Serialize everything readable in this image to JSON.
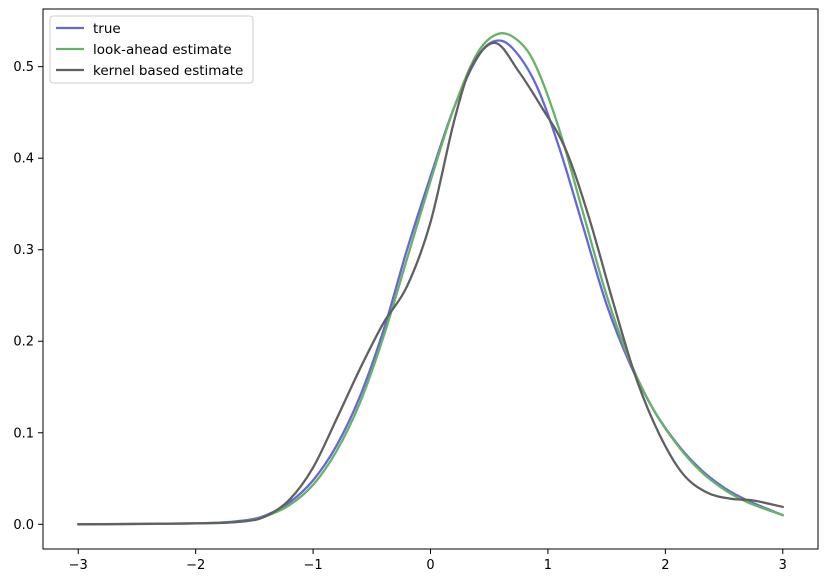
{
  "chart_data": {
    "type": "line",
    "title": "",
    "xlabel": "",
    "ylabel": "",
    "xlim": [
      -3.3,
      3.3
    ],
    "ylim": [
      -0.027,
      0.563
    ],
    "xticks": [
      -3,
      -2,
      -1,
      0,
      1,
      2,
      3
    ],
    "yticks": [
      0.0,
      0.1,
      0.2,
      0.3,
      0.4,
      0.5
    ],
    "xtick_labels": [
      "−3",
      "−2",
      "−1",
      "0",
      "1",
      "2",
      "3"
    ],
    "ytick_labels": [
      "0.0",
      "0.1",
      "0.2",
      "0.3",
      "0.4",
      "0.5"
    ],
    "grid": false,
    "legend_position": "top-left",
    "series": [
      {
        "name": "true",
        "color": "#6666dd",
        "x": [
          -3.0,
          -2.0,
          -1.6,
          -1.4,
          -1.2,
          -1.0,
          -0.8,
          -0.6,
          -0.4,
          -0.2,
          0.0,
          0.2,
          0.4,
          0.55,
          0.7,
          0.9,
          1.1,
          1.3,
          1.5,
          1.7,
          1.9,
          2.1,
          2.3,
          2.5,
          2.7,
          3.0
        ],
        "values": [
          0.0,
          0.001,
          0.004,
          0.01,
          0.024,
          0.048,
          0.086,
          0.14,
          0.212,
          0.3,
          0.38,
          0.455,
          0.51,
          0.528,
          0.52,
          0.48,
          0.41,
          0.325,
          0.24,
          0.175,
          0.125,
          0.088,
          0.06,
          0.04,
          0.026,
          0.01
        ]
      },
      {
        "name": "look-ahead estimate",
        "color": "#66b366",
        "x": [
          -3.0,
          -2.0,
          -1.6,
          -1.4,
          -1.2,
          -1.0,
          -0.8,
          -0.6,
          -0.4,
          -0.2,
          0.0,
          0.2,
          0.4,
          0.58,
          0.75,
          0.9,
          1.1,
          1.3,
          1.5,
          1.7,
          1.9,
          2.1,
          2.3,
          2.5,
          2.7,
          3.0
        ],
        "values": [
          0.0,
          0.001,
          0.003,
          0.009,
          0.021,
          0.043,
          0.08,
          0.133,
          0.205,
          0.29,
          0.375,
          0.455,
          0.515,
          0.536,
          0.528,
          0.5,
          0.43,
          0.34,
          0.25,
          0.178,
          0.125,
          0.087,
          0.058,
          0.038,
          0.024,
          0.01
        ]
      },
      {
        "name": "kernel based estimate",
        "color": "#606060",
        "x": [
          -3.0,
          -2.0,
          -1.6,
          -1.4,
          -1.2,
          -1.0,
          -0.8,
          -0.6,
          -0.4,
          -0.2,
          0.0,
          0.2,
          0.35,
          0.55,
          0.75,
          0.95,
          1.15,
          1.35,
          1.55,
          1.75,
          1.95,
          2.15,
          2.35,
          2.55,
          2.75,
          3.0
        ],
        "values": [
          0.0,
          0.001,
          0.003,
          0.009,
          0.027,
          0.062,
          0.115,
          0.17,
          0.22,
          0.26,
          0.33,
          0.44,
          0.5,
          0.526,
          0.495,
          0.455,
          0.41,
          0.335,
          0.245,
          0.16,
          0.098,
          0.055,
          0.035,
          0.028,
          0.026,
          0.019
        ]
      }
    ]
  }
}
